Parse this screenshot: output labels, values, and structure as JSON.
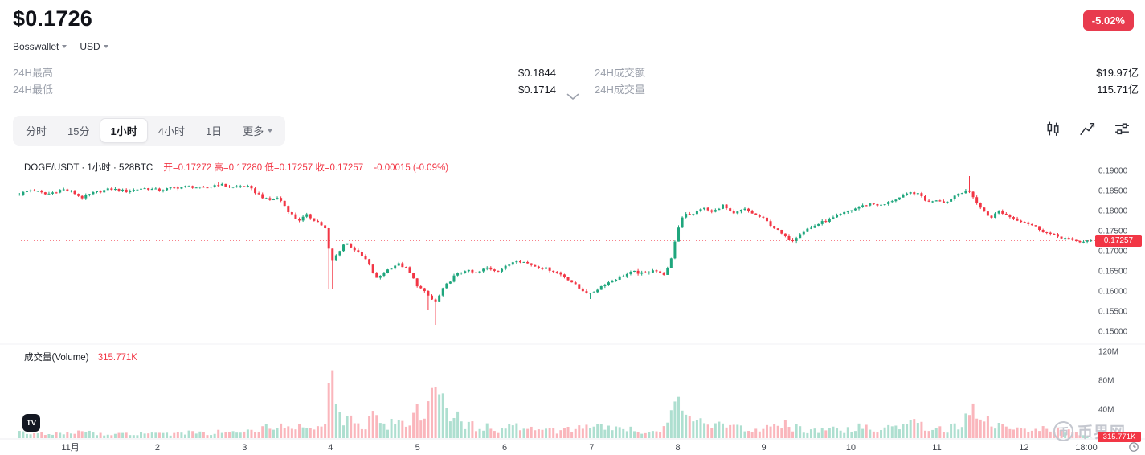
{
  "header": {
    "price": "$0.1726",
    "change_badge": "-5.02%",
    "source_select": "Bosswallet",
    "currency_select": "USD"
  },
  "stats": {
    "rows": [
      {
        "label_left": "24H最高",
        "value_left": "$0.1844",
        "label_right": "24H成交额",
        "value_right": "$19.97亿"
      },
      {
        "label_left": "24H最低",
        "value_left": "$0.1714",
        "label_right": "24H成交量",
        "value_right": "115.71亿"
      }
    ]
  },
  "toolbar": {
    "tabs": [
      {
        "label": "分时",
        "active": false
      },
      {
        "label": "15分",
        "active": false
      },
      {
        "label": "1小时",
        "active": true
      },
      {
        "label": "4小时",
        "active": false
      },
      {
        "label": "1日",
        "active": false
      },
      {
        "label": "更多",
        "active": false,
        "has_caret": true
      }
    ]
  },
  "legend": {
    "symbol": "DOGE/USDT · 1小时 · 528BTC",
    "ohlc": "开=0.17272 高=0.17280 低=0.17257 收=0.17257",
    "change": "-0.00015 (-0.09%)"
  },
  "volume_legend": {
    "label": "成交量(Volume)",
    "value": "315.771K"
  },
  "badges": {
    "last_price": "0.17257",
    "last_volume": "315.771K"
  },
  "watermark": {
    "text": "币界网",
    "icon_char": "币"
  },
  "tv_logo_text": "TV",
  "colors": {
    "up": "#1fa67d",
    "down": "#f23645",
    "badge": "#e83b4e"
  },
  "chart_data": {
    "type": "candlestick+volume",
    "symbol": "DOGE/USDT",
    "interval": "1小时",
    "last_price": 0.17257,
    "last_volume_label": "315.771K",
    "candle_count": 292,
    "price_axis": {
      "ticks": [
        "0.19000",
        "0.18500",
        "0.18000",
        "0.17500",
        "0.17000",
        "0.16500",
        "0.16000",
        "0.15500",
        "0.15000"
      ],
      "range": [
        0.15,
        0.19
      ]
    },
    "volume_axis": {
      "ticks": [
        "120M",
        "80M",
        "40M"
      ],
      "max_millions": 120
    },
    "x_axis": {
      "labels": [
        {
          "t": 0.049,
          "label": "11月"
        },
        {
          "t": 0.13,
          "label": "2"
        },
        {
          "t": 0.211,
          "label": "3"
        },
        {
          "t": 0.291,
          "label": "4"
        },
        {
          "t": 0.372,
          "label": "5"
        },
        {
          "t": 0.453,
          "label": "6"
        },
        {
          "t": 0.534,
          "label": "7"
        },
        {
          "t": 0.614,
          "label": "8"
        },
        {
          "t": 0.694,
          "label": "9"
        },
        {
          "t": 0.775,
          "label": "10"
        },
        {
          "t": 0.855,
          "label": "11"
        },
        {
          "t": 0.936,
          "label": "12"
        },
        {
          "t": 0.994,
          "label": "18:00"
        }
      ]
    },
    "price_path": [
      [
        0.0,
        0.1842,
        8
      ],
      [
        0.012,
        0.1852,
        6
      ],
      [
        0.025,
        0.184,
        7
      ],
      [
        0.04,
        0.1853,
        8
      ],
      [
        0.049,
        0.1847,
        6
      ],
      [
        0.058,
        0.1832,
        9
      ],
      [
        0.07,
        0.1845,
        6
      ],
      [
        0.085,
        0.1854,
        5
      ],
      [
        0.1,
        0.1848,
        6
      ],
      [
        0.115,
        0.1856,
        7
      ],
      [
        0.13,
        0.1851,
        5
      ],
      [
        0.145,
        0.1857,
        6
      ],
      [
        0.16,
        0.186,
        8
      ],
      [
        0.172,
        0.1855,
        6
      ],
      [
        0.185,
        0.1866,
        9
      ],
      [
        0.198,
        0.1858,
        7
      ],
      [
        0.211,
        0.1863,
        8
      ],
      [
        0.222,
        0.1842,
        14
      ],
      [
        0.232,
        0.1825,
        18
      ],
      [
        0.242,
        0.1832,
        12
      ],
      [
        0.252,
        0.1795,
        22
      ],
      [
        0.26,
        0.1775,
        18
      ],
      [
        0.268,
        0.1788,
        14
      ],
      [
        0.278,
        0.1772,
        13
      ],
      [
        0.286,
        0.1755,
        20
      ],
      [
        0.2905,
        0.1668,
        115
      ],
      [
        0.296,
        0.169,
        42
      ],
      [
        0.304,
        0.1722,
        26
      ],
      [
        0.314,
        0.17,
        18
      ],
      [
        0.324,
        0.1676,
        22
      ],
      [
        0.333,
        0.163,
        34
      ],
      [
        0.343,
        0.1652,
        20
      ],
      [
        0.353,
        0.1668,
        24
      ],
      [
        0.362,
        0.1655,
        28
      ],
      [
        0.371,
        0.1615,
        36
      ],
      [
        0.38,
        0.1592,
        44
      ],
      [
        0.388,
        0.157,
        56
      ],
      [
        0.396,
        0.1608,
        46
      ],
      [
        0.406,
        0.1638,
        30
      ],
      [
        0.416,
        0.1652,
        22
      ],
      [
        0.426,
        0.1643,
        15
      ],
      [
        0.436,
        0.1658,
        18
      ],
      [
        0.446,
        0.165,
        12
      ],
      [
        0.455,
        0.1662,
        14
      ],
      [
        0.463,
        0.1678,
        20
      ],
      [
        0.473,
        0.167,
        12
      ],
      [
        0.483,
        0.166,
        10
      ],
      [
        0.493,
        0.1655,
        9
      ],
      [
        0.503,
        0.1645,
        11
      ],
      [
        0.513,
        0.1628,
        14
      ],
      [
        0.523,
        0.1605,
        18
      ],
      [
        0.533,
        0.1592,
        22
      ],
      [
        0.543,
        0.1612,
        16
      ],
      [
        0.553,
        0.1626,
        12
      ],
      [
        0.563,
        0.1638,
        10
      ],
      [
        0.573,
        0.1648,
        12
      ],
      [
        0.583,
        0.1642,
        9
      ],
      [
        0.592,
        0.1655,
        11
      ],
      [
        0.6,
        0.1638,
        16
      ],
      [
        0.607,
        0.1662,
        24
      ],
      [
        0.6135,
        0.1748,
        44
      ],
      [
        0.62,
        0.1795,
        38
      ],
      [
        0.628,
        0.1788,
        25
      ],
      [
        0.637,
        0.1808,
        20
      ],
      [
        0.647,
        0.1795,
        15
      ],
      [
        0.656,
        0.1814,
        18
      ],
      [
        0.666,
        0.179,
        14
      ],
      [
        0.676,
        0.1804,
        12
      ],
      [
        0.685,
        0.1792,
        10
      ],
      [
        0.694,
        0.178,
        12
      ],
      [
        0.704,
        0.1758,
        14
      ],
      [
        0.714,
        0.1736,
        18
      ],
      [
        0.722,
        0.1726,
        16
      ],
      [
        0.73,
        0.1748,
        12
      ],
      [
        0.74,
        0.176,
        10
      ],
      [
        0.75,
        0.1772,
        11
      ],
      [
        0.76,
        0.1782,
        12
      ],
      [
        0.768,
        0.1792,
        10
      ],
      [
        0.775,
        0.18,
        13
      ],
      [
        0.785,
        0.181,
        15
      ],
      [
        0.795,
        0.1818,
        12
      ],
      [
        0.805,
        0.1812,
        10
      ],
      [
        0.815,
        0.1826,
        14
      ],
      [
        0.825,
        0.1836,
        16
      ],
      [
        0.833,
        0.1846,
        22
      ],
      [
        0.841,
        0.1838,
        18
      ],
      [
        0.848,
        0.182,
        16
      ],
      [
        0.855,
        0.1828,
        14
      ],
      [
        0.865,
        0.182,
        12
      ],
      [
        0.874,
        0.184,
        16
      ],
      [
        0.884,
        0.1852,
        30
      ],
      [
        0.891,
        0.183,
        34
      ],
      [
        0.899,
        0.18,
        28
      ],
      [
        0.906,
        0.1782,
        22
      ],
      [
        0.914,
        0.1798,
        15
      ],
      [
        0.922,
        0.1788,
        12
      ],
      [
        0.93,
        0.1778,
        13
      ],
      [
        0.938,
        0.1772,
        12
      ],
      [
        0.948,
        0.176,
        13
      ],
      [
        0.958,
        0.1745,
        14
      ],
      [
        0.968,
        0.1736,
        11
      ],
      [
        0.978,
        0.173,
        9
      ],
      [
        0.988,
        0.1722,
        7
      ],
      [
        1.0,
        0.17257,
        0.32
      ]
    ],
    "wick_marks": [
      {
        "t": 0.2905,
        "low": 0.1606
      },
      {
        "t": 0.38,
        "low": 0.1552
      },
      {
        "t": 0.388,
        "low": 0.1516
      },
      {
        "t": 0.533,
        "low": 0.158
      },
      {
        "t": 0.185,
        "high": 0.1872
      },
      {
        "t": 0.886,
        "high": 0.1886
      }
    ]
  }
}
